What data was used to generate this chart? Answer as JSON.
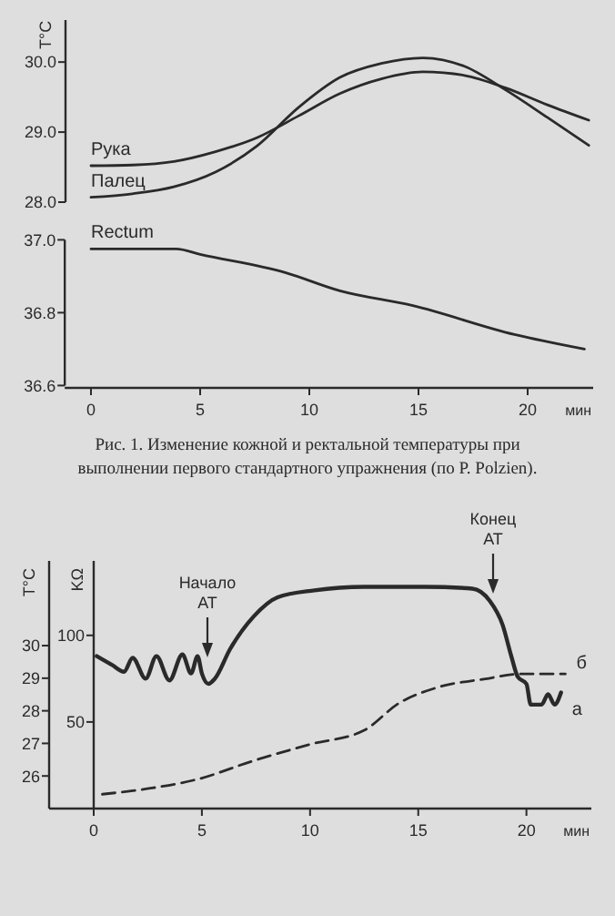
{
  "chart_data": [
    {
      "type": "line",
      "ylabel": "T°C",
      "categories": [
        null,
        null,
        null,
        null,
        null,
        null,
        null,
        null,
        null,
        null,
        null,
        null,
        null
      ],
      "ylim": [
        28,
        30.6
      ],
      "yticks": [
        {
          "value": 28,
          "label": "28.0"
        },
        {
          "value": 29,
          "label": "29.0"
        },
        {
          "value": 30,
          "label": "30.0"
        }
      ],
      "tick_labels": "y",
      "legend": false,
      "grid": false,
      "line_style": "solid",
      "series": [
        {
          "name": "Рука",
          "color": "#2a2a2a",
          "values": [
            28.52,
            28.53,
            28.58,
            28.72,
            28.92,
            29.23,
            29.55,
            29.76,
            29.86,
            29.81,
            29.63,
            29.39,
            29.17
          ]
        },
        {
          "name": "Палец",
          "color": "#2a2a2a",
          "values": [
            28.07,
            28.12,
            28.22,
            28.43,
            28.8,
            29.35,
            29.78,
            29.98,
            30.06,
            29.94,
            29.6,
            29.21,
            28.81
          ]
        }
      ]
    },
    {
      "type": "line",
      "xlabel": "мин",
      "xlim": [
        -1.2,
        23
      ],
      "ylim": [
        36.6,
        37.0
      ],
      "xticks": [
        0,
        5,
        10,
        15,
        20
      ],
      "yticks": [
        36.6,
        36.8,
        {
          "value": 37,
          "label": "37.0"
        }
      ],
      "legend": false,
      "grid": false,
      "line_style": "solid",
      "annotations": [
        "Рис. 1. Изменение кожной и ректальной температуры при выполнении первого стандартного упражнения (по P. Polzien)."
      ],
      "series": [
        {
          "name": "Rectum",
          "color": "#2a2a2a",
          "x": [
            0,
            3.9,
            5,
            8.9,
            11.4,
            14.7,
            19.4,
            22.6
          ],
          "values": [
            36.975,
            36.975,
            36.96,
            36.91,
            36.86,
            36.82,
            36.74,
            36.7
          ]
        }
      ]
    },
    {
      "type": "line",
      "ylabel": "T°C",
      "y2label": "KΩ",
      "xlabel": "мин",
      "xlim": [
        0,
        23
      ],
      "ylim": [
        25,
        32.6
      ],
      "y2lim": [
        0,
        143
      ],
      "xticks": [
        0,
        5,
        10,
        15,
        20
      ],
      "yticks": [
        26,
        27,
        28,
        29,
        30
      ],
      "y2ticks": [
        50,
        100
      ],
      "legend": false,
      "grid": false,
      "annotations": [
        "Начало АТ",
        "Конец АТ"
      ],
      "series": [
        {
          "name": "а",
          "axis": "y2",
          "color": "#2a2a2a",
          "line_style": "solid",
          "x": [
            0.14,
            0.84,
            1.4,
            1.8,
            2.4,
            2.9,
            3.5,
            4.1,
            4.5,
            4.8,
            5,
            5.3,
            5.6,
            6.3,
            7.4,
            8.5,
            10.2,
            12.5,
            15.3,
            17.5,
            18.3,
            18.9,
            19.3,
            19.6,
            20,
            20.2,
            20.7,
            21,
            21.3,
            21.6
          ],
          "values": [
            88,
            83,
            79,
            87,
            75,
            88,
            74,
            89,
            78,
            88,
            78,
            72,
            75,
            92,
            111,
            122,
            126,
            128,
            128,
            127,
            120,
            106,
            88,
            76,
            72,
            60,
            60,
            66,
            60,
            67
          ]
        },
        {
          "name": "б",
          "color": "#2a2a2a",
          "line_style": "dashed",
          "x": [
            0.4,
            2.7,
            4.8,
            7.4,
            10,
            12.5,
            14.1,
            15.8,
            18.1,
            19.7,
            21.8
          ],
          "values": [
            25.44,
            25.63,
            25.9,
            26.47,
            26.97,
            27.4,
            28.23,
            28.7,
            28.98,
            29.13,
            29.13
          ]
        }
      ]
    }
  ]
}
